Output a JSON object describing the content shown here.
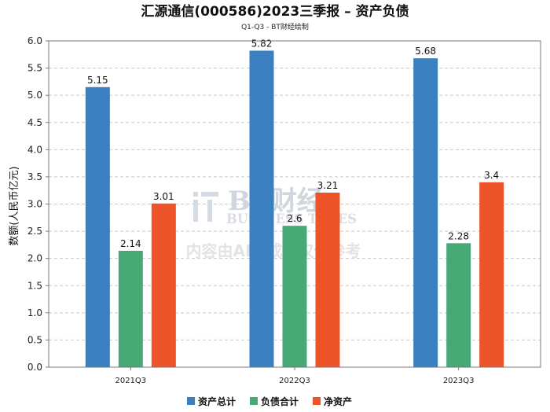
{
  "chart_data": {
    "type": "bar",
    "title": "汇源通信(000586)2023三季报 – 资产负债",
    "subtitle": "Q1-Q3 - BT财经绘制",
    "ylabel": "数额(人民币亿元)",
    "xlabel": "",
    "ylim": [
      0,
      6.0
    ],
    "yticks": [
      "0.0",
      "0.5",
      "1.0",
      "1.5",
      "2.0",
      "2.5",
      "3.0",
      "3.5",
      "4.0",
      "4.5",
      "5.0",
      "5.5",
      "6.0"
    ],
    "categories": [
      "2021Q3",
      "2022Q3",
      "2023Q3"
    ],
    "series": [
      {
        "name": "资产总计",
        "color": "#3a80c1",
        "values": [
          5.15,
          5.82,
          5.68
        ]
      },
      {
        "name": "负债合计",
        "color": "#47aa76",
        "values": [
          2.14,
          2.6,
          2.28
        ]
      },
      {
        "name": "净资产",
        "color": "#ee5429",
        "values": [
          3.01,
          3.21,
          3.4
        ]
      }
    ],
    "grid": true,
    "legend_position": "bottom"
  },
  "watermark": {
    "brand": "BT财经",
    "brand_en": "BUSINESS TIMES",
    "notice": "内容由AI生成，仅供参考"
  }
}
